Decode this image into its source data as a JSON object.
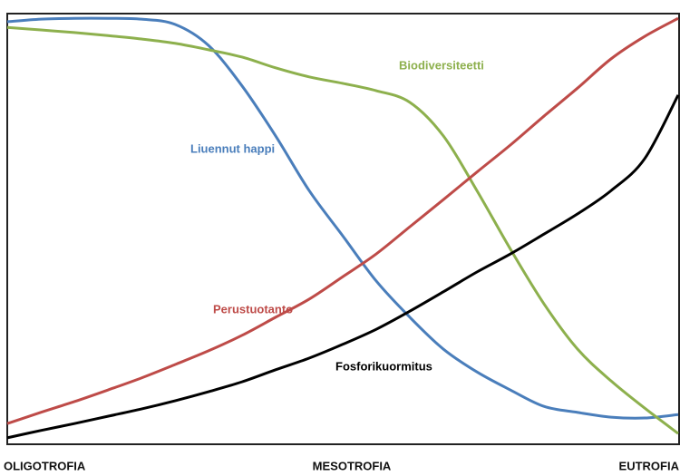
{
  "chart_data": {
    "type": "line",
    "categories": [
      "OLIGOTROFIA",
      null,
      null,
      null,
      null,
      null,
      null,
      null,
      null,
      null,
      "MESOTROFIA",
      null,
      null,
      null,
      null,
      null,
      null,
      null,
      null,
      null,
      "EUTROFIA"
    ],
    "ylim": [
      0,
      100
    ],
    "series": [
      {
        "name": "Liuennut happi",
        "color": "#4a7ebb",
        "values": [
          98.1,
          98.7,
          98.9,
          98.9,
          98.7,
          97.5,
          92.6,
          83.2,
          71.6,
          58.9,
          48.4,
          37.9,
          29.5,
          22.1,
          16.8,
          12.6,
          8.8,
          7.4,
          6.3,
          6.1,
          6.9
        ]
      },
      {
        "name": "Biodiversiteetti",
        "color": "#8db04d",
        "values": [
          96.8,
          96.2,
          95.6,
          94.9,
          94.1,
          93.1,
          91.6,
          89.9,
          87.4,
          85.3,
          83.8,
          82.1,
          79.4,
          71.6,
          58.9,
          45.3,
          32.6,
          22.1,
          14.7,
          8.4,
          2.5
        ]
      },
      {
        "name": "Perustuotanto",
        "color": "#be4b48",
        "values": [
          4.8,
          7.4,
          9.9,
          12.6,
          15.4,
          18.5,
          21.7,
          25.3,
          29.5,
          33.7,
          38.9,
          44.2,
          50.5,
          56.8,
          63.2,
          69.5,
          76.2,
          82.7,
          89.5,
          94.7,
          98.9
        ]
      },
      {
        "name": "Fosforikuormitus",
        "color": "#000000",
        "values": [
          1.5,
          3.2,
          4.8,
          6.5,
          8.2,
          10.1,
          12.2,
          14.5,
          17.3,
          20.0,
          23.2,
          26.7,
          30.9,
          35.4,
          40.0,
          44.2,
          48.8,
          53.5,
          58.9,
          66.3,
          81.1
        ]
      }
    ]
  }
}
